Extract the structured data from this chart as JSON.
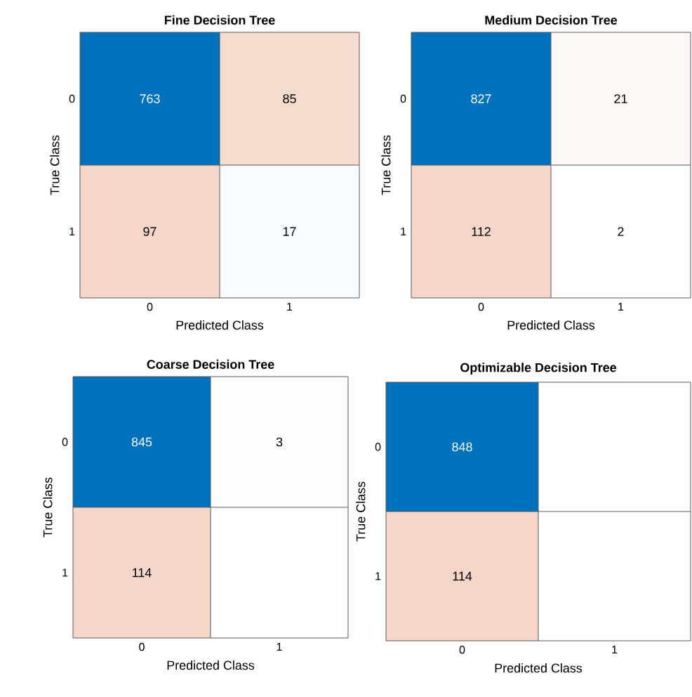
{
  "chart_data": [
    {
      "type": "heatmap",
      "title": "Fine Decision Tree",
      "xlabel": "Predicted Class",
      "ylabel": "True Class",
      "categories": [
        "0",
        "1"
      ],
      "y_categories": [
        "0",
        "1"
      ],
      "cells": [
        [
          763,
          85
        ],
        [
          97,
          17
        ]
      ],
      "data_labels": true
    },
    {
      "type": "heatmap",
      "title": "Medium Decision Tree",
      "xlabel": "Predicted Class",
      "ylabel": "True Class",
      "categories": [
        "0",
        "1"
      ],
      "y_categories": [
        "0",
        "1"
      ],
      "cells": [
        [
          827,
          21
        ],
        [
          112,
          2
        ]
      ],
      "data_labels": true
    },
    {
      "type": "heatmap",
      "title": "Coarse Decision Tree",
      "xlabel": "Predicted Class",
      "ylabel": "True Class",
      "categories": [
        "0",
        "1"
      ],
      "y_categories": [
        "0",
        "1"
      ],
      "cells": [
        [
          845,
          3
        ],
        [
          114,
          null
        ]
      ],
      "data_labels": true
    },
    {
      "type": "heatmap",
      "title": "Optimizable Decision Tree",
      "xlabel": "Predicted Class",
      "ylabel": "True Class",
      "categories": [
        "0",
        "1"
      ],
      "y_categories": [
        "0",
        "1"
      ],
      "cells": [
        [
          848,
          null
        ],
        [
          114,
          null
        ]
      ],
      "data_labels": true
    }
  ]
}
